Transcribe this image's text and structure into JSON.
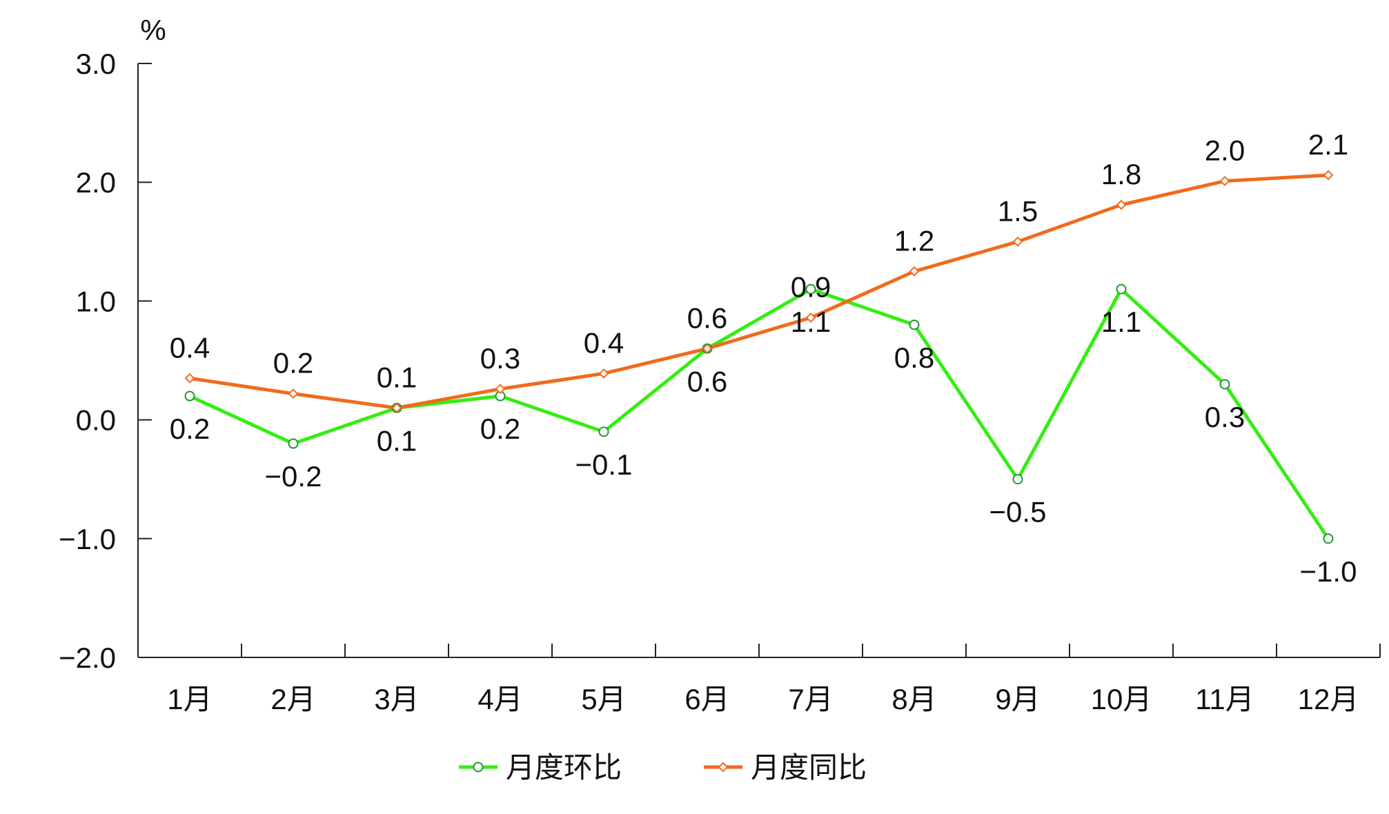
{
  "chart_data": {
    "type": "line",
    "unit_label": "%",
    "categories": [
      "1月",
      "2月",
      "3月",
      "4月",
      "5月",
      "6月",
      "7月",
      "8月",
      "9月",
      "10月",
      "11月",
      "12月"
    ],
    "ylim": [
      -2.0,
      3.0
    ],
    "yticks": [
      -2.0,
      -1.0,
      0.0,
      1.0,
      2.0,
      3.0
    ],
    "ytick_labels": [
      "−2.0",
      "−1.0",
      "0.0",
      "1.0",
      "2.0",
      "3.0"
    ],
    "grid": false,
    "legend_position": "bottom-center",
    "series": [
      {
        "name": "月度环比",
        "color": "#33ee11",
        "marker": "circle",
        "values": [
          0.2,
          -0.2,
          0.1,
          0.2,
          -0.1,
          0.6,
          1.1,
          0.8,
          -0.5,
          1.1,
          0.3,
          -1.0
        ],
        "labels": [
          "0.2",
          "−0.2",
          "0.1",
          "0.2",
          "−0.1",
          "0.6",
          "1.1",
          "0.8",
          "−0.5",
          "1.1",
          "0.3",
          "−1.0"
        ],
        "label_position": [
          "below",
          "below",
          "below",
          "below",
          "below",
          "below",
          "below",
          "below",
          "below",
          "below",
          "below",
          "below"
        ]
      },
      {
        "name": "月度同比",
        "color": "#f26a1b",
        "marker": "diamond",
        "values": [
          0.35,
          0.22,
          0.1,
          0.26,
          0.39,
          0.6,
          0.86,
          1.25,
          1.5,
          1.81,
          2.01,
          2.06
        ],
        "labels": [
          "0.4",
          "0.2",
          "0.1",
          "0.3",
          "0.4",
          "0.6",
          "0.9",
          "1.2",
          "1.5",
          "1.8",
          "2.0",
          "2.1"
        ],
        "label_position": [
          "above",
          "above",
          "above",
          "above",
          "above",
          "above",
          "above",
          "above",
          "above",
          "above",
          "above",
          "above"
        ]
      }
    ]
  }
}
